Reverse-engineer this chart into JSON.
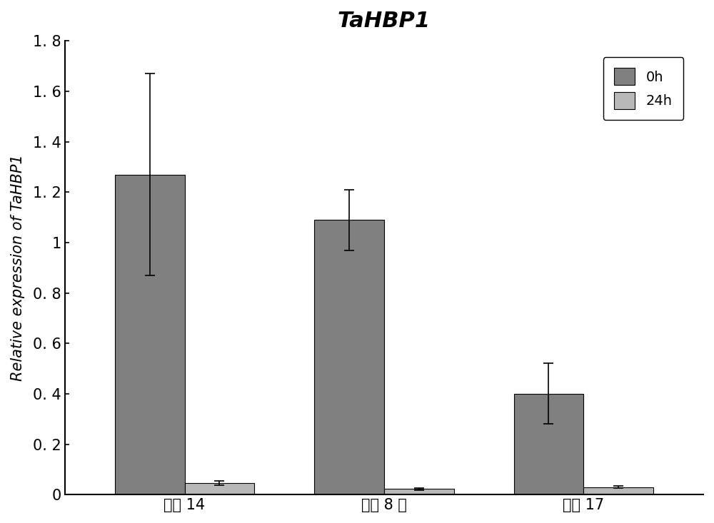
{
  "title": "TaHBP1",
  "ylabel": "Relative expression of TaHBP1",
  "categories": [
    "石麦 14",
    "内麦 8 号",
    "兰天 17"
  ],
  "bar_0h_values": [
    1.27,
    1.09,
    0.4
  ],
  "bar_24h_values": [
    0.045,
    0.022,
    0.03
  ],
  "err_0h": [
    0.4,
    0.12,
    0.12
  ],
  "err_24h": [
    0.008,
    0.005,
    0.005
  ],
  "color_0h": "#808080",
  "color_24h": "#b8b8b8",
  "ylim": [
    0,
    1.8
  ],
  "ytick_values": [
    0,
    0.2,
    0.4,
    0.6,
    0.8,
    1.0,
    1.2,
    1.4,
    1.6,
    1.8
  ],
  "ytick_labels": [
    "0",
    "0. 2",
    "0. 4",
    "0. 6",
    "0. 8",
    "1",
    "1. 2",
    "1. 4",
    "1. 6",
    "1. 8"
  ],
  "legend_0h": "0h",
  "legend_24h": "24h",
  "bar_width": 0.35,
  "group_positions": [
    1,
    2,
    3
  ],
  "background_color": "#ffffff",
  "title_fontsize": 22,
  "label_fontsize": 15,
  "tick_fontsize": 15,
  "legend_fontsize": 14
}
